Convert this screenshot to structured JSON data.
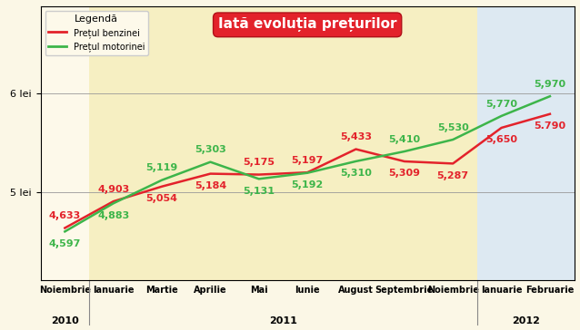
{
  "chart_data": {
    "type": "line",
    "title": "Iată evoluția prețurilor",
    "categories": [
      "Noiembrie",
      "Ianuarie",
      "Martie",
      "Aprilie",
      "Mai",
      "Iunie",
      "August",
      "Septembrie",
      "Noiembrie",
      "Ianuarie",
      "Februarie"
    ],
    "years": [
      "2010",
      "2011",
      "2011",
      "2011",
      "2011",
      "2011",
      "2011",
      "2011",
      "2011",
      "2012",
      "2012"
    ],
    "series": [
      {
        "name": "Prețul benzinei",
        "color": "#e3222b",
        "marker": "none",
        "line_style": "solid",
        "values": [
          4.633,
          4.903,
          5.054,
          5.184,
          5.175,
          5.197,
          5.433,
          5.309,
          5.287,
          5.65,
          5.79
        ],
        "value_labels": [
          "4,633",
          "4,903",
          "5,054",
          "5,184",
          "5,175",
          "5,197",
          "5,433",
          "5,309",
          "5,287",
          "5,650",
          "5.790"
        ]
      },
      {
        "name": "Prețul motorinei",
        "color": "#3db54a",
        "marker": "none",
        "line_style": "solid",
        "values": [
          4.597,
          4.883,
          5.119,
          5.303,
          5.131,
          5.192,
          5.31,
          5.41,
          5.53,
          5.77,
          5.97
        ],
        "value_labels": [
          "4,597",
          "4,883",
          "5,119",
          "5,303",
          "5,131",
          "5,192",
          "5,310",
          "5,410",
          "5,530",
          "5,770",
          "5,970"
        ]
      }
    ],
    "ylim": [
      4.1,
      6.88
    ],
    "yticks": [
      {
        "value": 5,
        "label": "5 lei"
      },
      {
        "value": 6,
        "label": "6 lei"
      }
    ],
    "grid": true,
    "legend": "upper left",
    "legend_title": "Legendă",
    "data_labels": true
  }
}
